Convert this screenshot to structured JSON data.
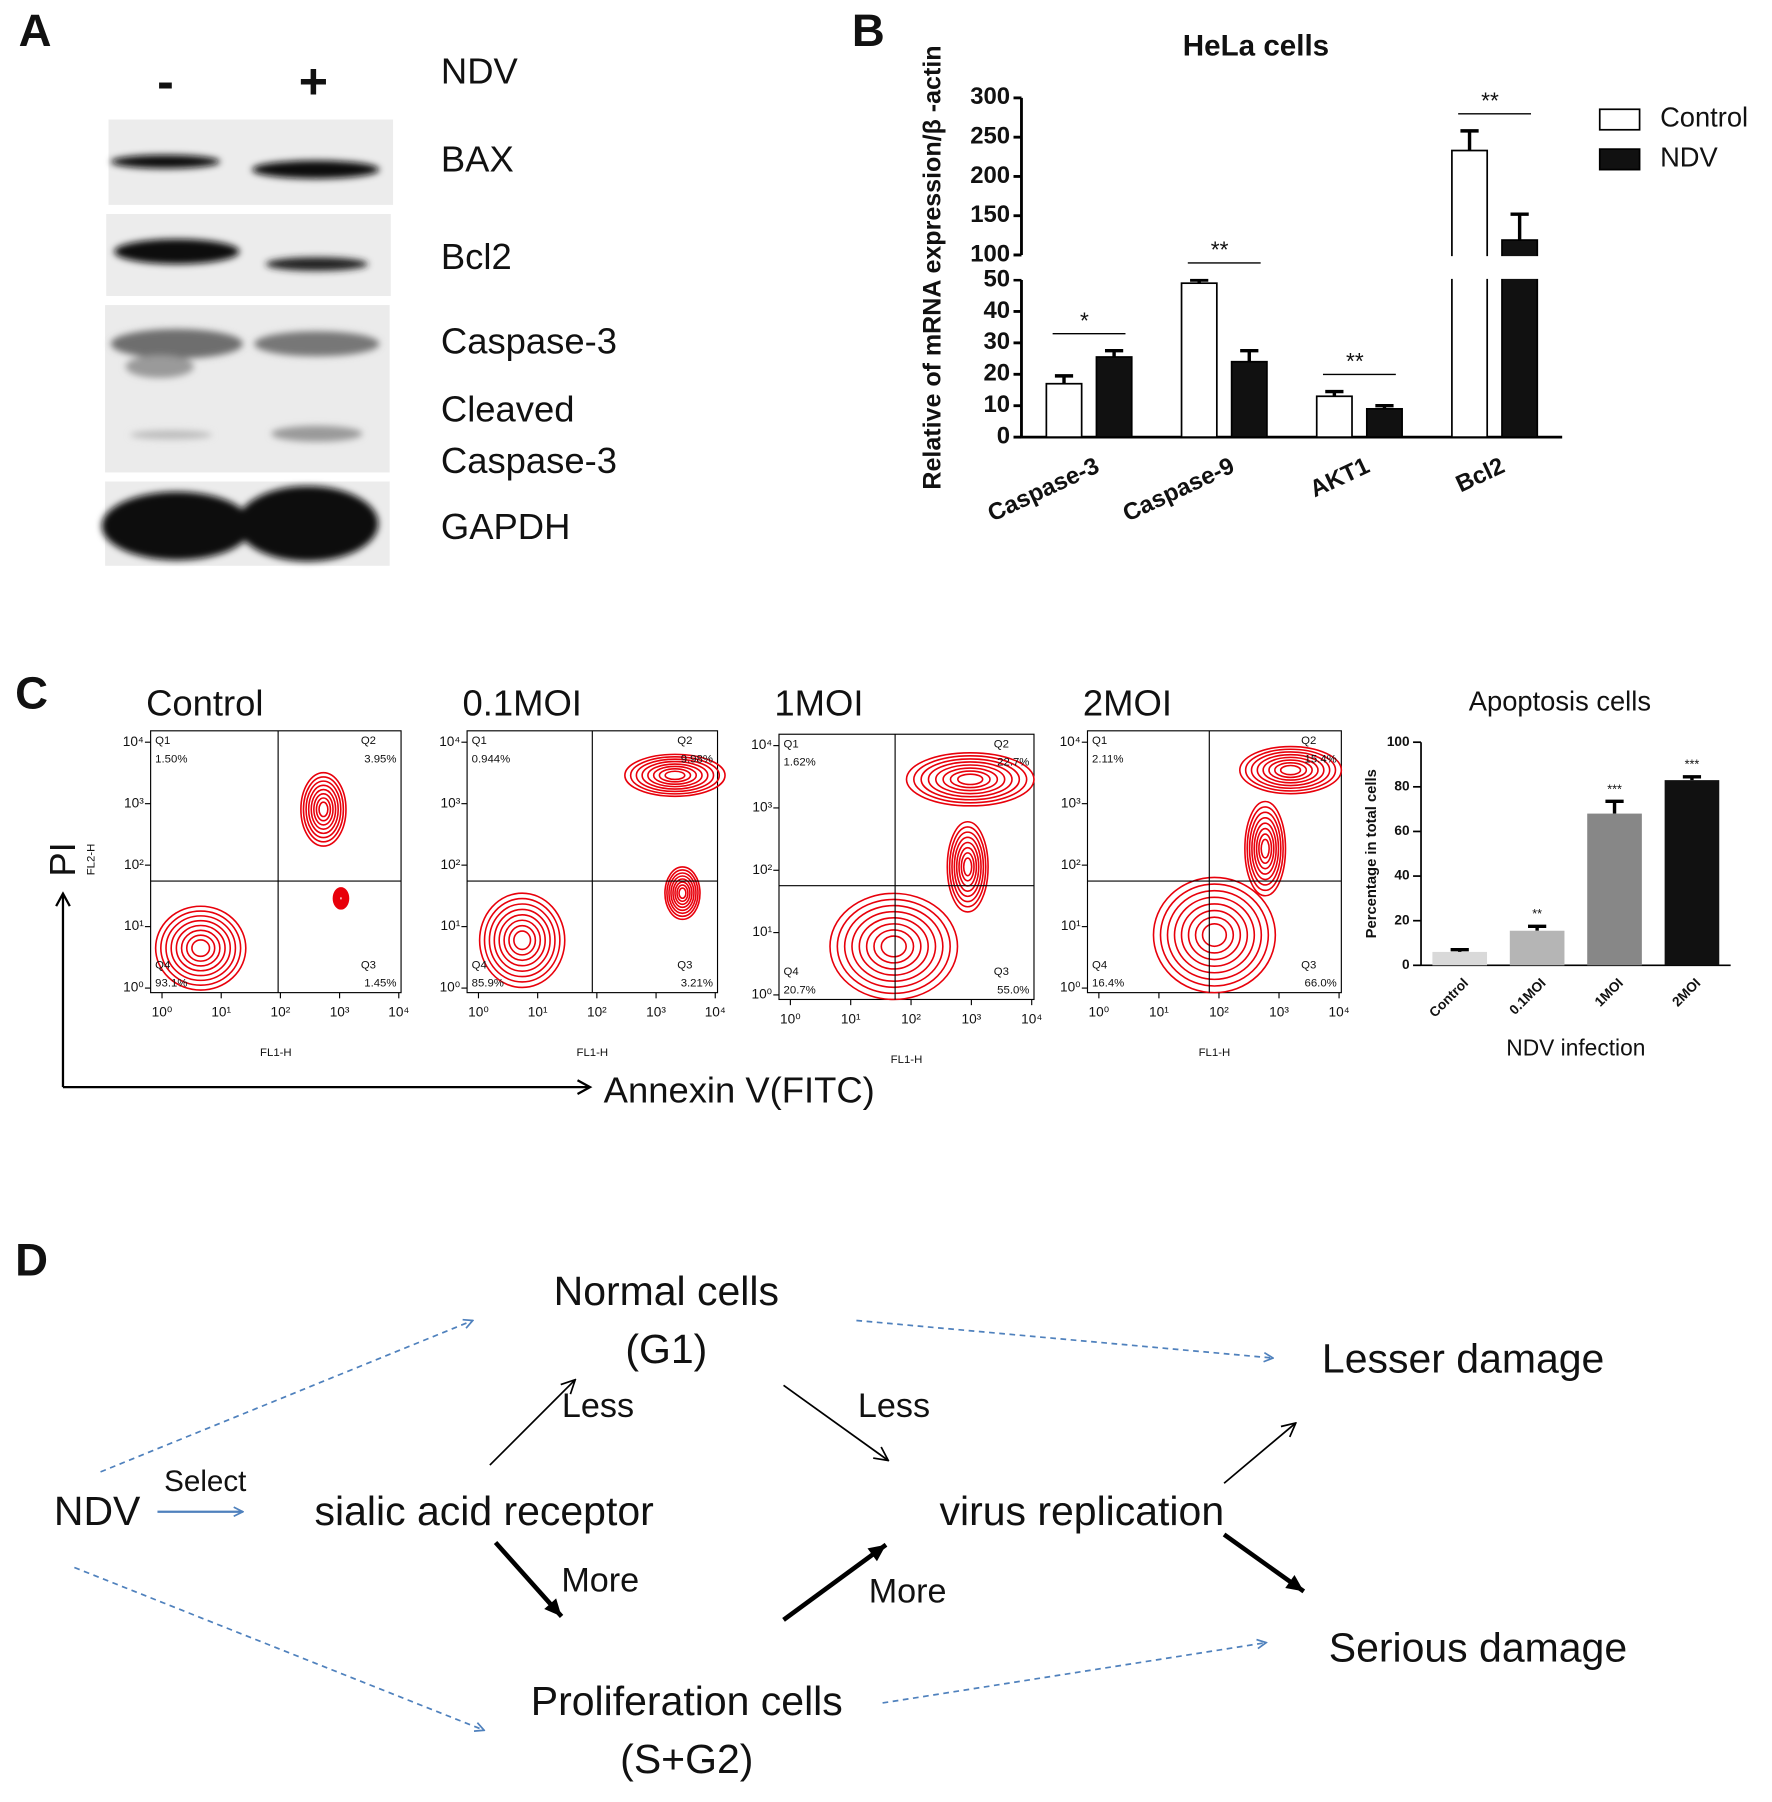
{
  "panel_labels": [
    "A",
    "B",
    "C",
    "D"
  ],
  "western_blot": {
    "lanes": [
      "-",
      "+"
    ],
    "treatment": "NDV",
    "labels": [
      "BAX",
      "Bcl2",
      "Caspase-3",
      "Cleaved",
      "Caspase-3",
      "GAPDH"
    ]
  },
  "chart_data": [
    {
      "type": "bar",
      "title": "HeLa cells",
      "y_label": "Relative of mRNA expression/β -actin",
      "categories": [
        "Caspase-3",
        "Caspase-9",
        "AKT1",
        "Bcl2"
      ],
      "series": [
        {
          "name": "Control",
          "color": "#ffffff",
          "values": [
            17,
            49,
            13,
            233
          ],
          "errors": [
            2.5,
            1,
            1.5,
            25
          ]
        },
        {
          "name": "NDV",
          "color": "#111111",
          "values": [
            25.5,
            24,
            9,
            119
          ],
          "errors": [
            2,
            3.5,
            1,
            33
          ]
        }
      ],
      "ylim": [
        0,
        300
      ],
      "y_break": [
        50,
        100
      ],
      "yticks": [
        0,
        10,
        20,
        30,
        40,
        50,
        100,
        150,
        200,
        250,
        300
      ],
      "annotations": [
        "*",
        "**",
        "**",
        "**"
      ],
      "legend": "top-right"
    },
    {
      "type": "bar",
      "title": "Apoptosis cells",
      "x_label": "NDV infection",
      "y_label": "Percentage  in total cells",
      "categories": [
        "Control",
        "0.1MOI",
        "1MOI",
        "2MOI"
      ],
      "values": [
        6,
        15.5,
        68,
        83
      ],
      "errors": [
        1,
        2,
        5.5,
        1.5
      ],
      "colors": [
        "#d9d9d9",
        "#b5b5b5",
        "#878787",
        "#111111"
      ],
      "ylim": [
        0,
        100
      ],
      "yticks": [
        0,
        20,
        40,
        60,
        80,
        100
      ],
      "annotations": [
        null,
        "**",
        "***",
        "***"
      ]
    }
  ],
  "flow_cytometry": {
    "x_axis_label": "Annexin V(FITC)",
    "y_axis_label": "PI",
    "plot_x_label": "FL1-H",
    "plot_y_label": "FL2-H",
    "decades": [
      "10⁰",
      "10¹",
      "10²",
      "10³",
      "10⁴"
    ],
    "plots": [
      {
        "title": "Control",
        "quadrants": [
          {
            "name": "Q1",
            "percent": "1.50%"
          },
          {
            "name": "Q2",
            "percent": "3.95%"
          },
          {
            "name": "Q3",
            "percent": "1.45%"
          },
          {
            "name": "Q4",
            "percent": "93.1%"
          }
        ]
      },
      {
        "title": "0.1MOI",
        "quadrants": [
          {
            "name": "Q1",
            "percent": "0.944%"
          },
          {
            "name": "Q2",
            "percent": "9.98%"
          },
          {
            "name": "Q3",
            "percent": "3.21%"
          },
          {
            "name": "Q4",
            "percent": "85.9%"
          }
        ]
      },
      {
        "title": "1MOI",
        "quadrants": [
          {
            "name": "Q1",
            "percent": "1.62%"
          },
          {
            "name": "Q2",
            "percent": "22.7%"
          },
          {
            "name": "Q3",
            "percent": "55.0%"
          },
          {
            "name": "Q4",
            "percent": "20.7%"
          }
        ]
      },
      {
        "title": "2MOI",
        "quadrants": [
          {
            "name": "Q1",
            "percent": "2.11%"
          },
          {
            "name": "Q2",
            "percent": "15.4%"
          },
          {
            "name": "Q3",
            "percent": "66.0%"
          },
          {
            "name": "Q4",
            "percent": "16.4%"
          }
        ]
      }
    ]
  },
  "diagram": {
    "nodes": [
      {
        "lines": [
          "Normal cells",
          "(G1)"
        ]
      },
      {
        "lines": [
          "Lesser damage"
        ]
      },
      {
        "lines": [
          "NDV"
        ]
      },
      {
        "lines": [
          "sialic acid receptor"
        ]
      },
      {
        "lines": [
          "virus replication"
        ]
      },
      {
        "lines": [
          "Proliferation cells",
          "(S+G2)"
        ]
      },
      {
        "lines": [
          "Serious damage"
        ]
      }
    ],
    "edge_labels": [
      "Select",
      "Less",
      "Less",
      "More",
      "More"
    ]
  }
}
